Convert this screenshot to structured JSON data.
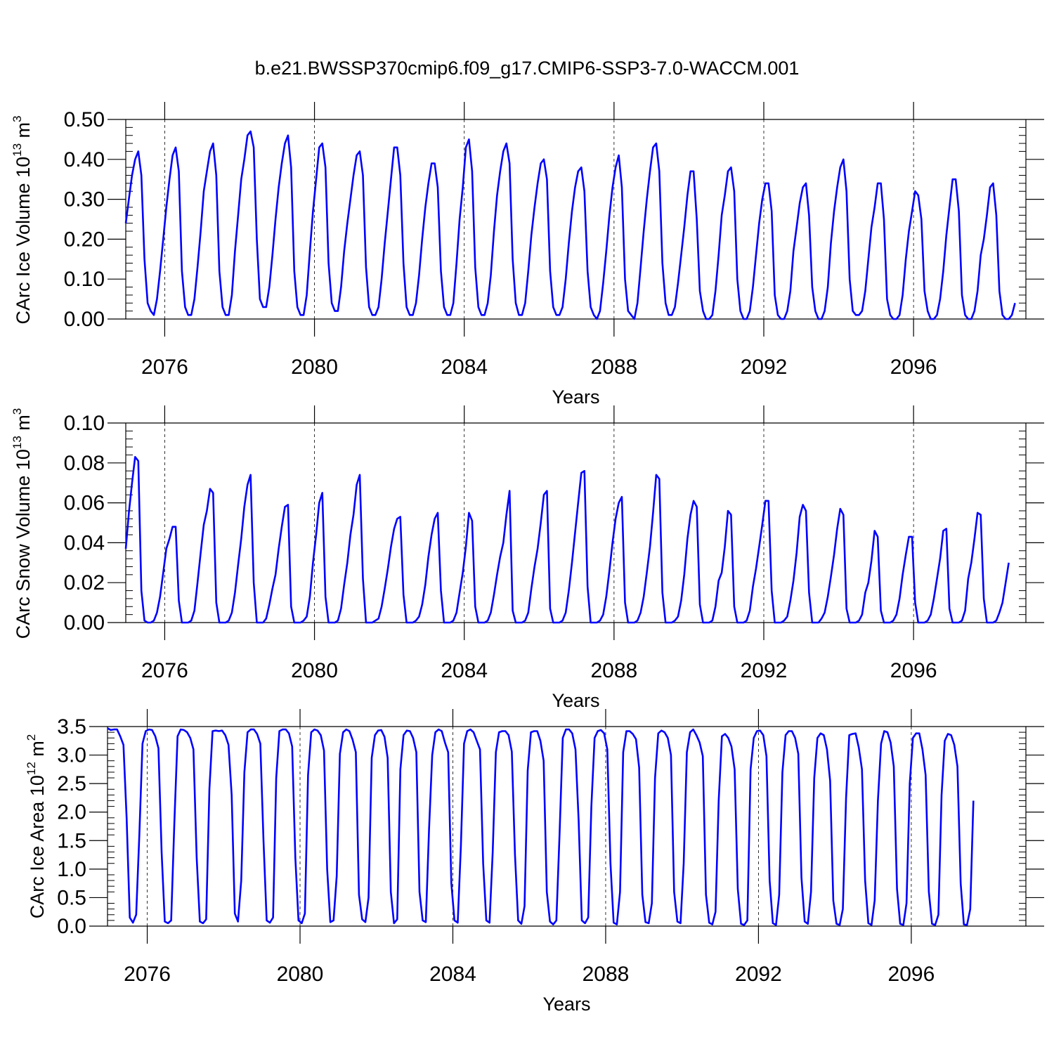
{
  "title": "b.e21.BWSSP370cmip6.f09_g17.CMIP6-SSP3-7.0-WACCM.001",
  "colors": {
    "series": "#0000ff",
    "axis": "#000000",
    "grid": "#000000"
  },
  "chart_data": [
    {
      "type": "line",
      "ylabel_main": "CArc Ice Volume 10",
      "ylabel_exp": "13",
      "ylabel_unit": " m",
      "ylabel_unit_exp": "3",
      "xlabel": "Years",
      "xlim": [
        2074.96,
        2099.0
      ],
      "ylim": [
        0.0,
        0.5
      ],
      "x_ticks": [
        "2076",
        "2080",
        "2084",
        "2088",
        "2092",
        "2096"
      ],
      "y_ticks": [
        "0.00",
        "0.10",
        "0.20",
        "0.30",
        "0.40",
        "0.50"
      ],
      "grid": "vertical dashed at major x ticks",
      "x_start": 2074.96,
      "x_step": 0.08333,
      "series": [
        {
          "values": [
            0.24,
            0.3,
            0.36,
            0.4,
            0.42,
            0.36,
            0.15,
            0.04,
            0.02,
            0.01,
            0.05,
            0.12,
            0.2,
            0.28,
            0.35,
            0.41,
            0.43,
            0.37,
            0.12,
            0.03,
            0.01,
            0.01,
            0.05,
            0.13,
            0.22,
            0.32,
            0.37,
            0.42,
            0.44,
            0.36,
            0.12,
            0.03,
            0.01,
            0.01,
            0.06,
            0.17,
            0.26,
            0.35,
            0.4,
            0.46,
            0.47,
            0.43,
            0.2,
            0.05,
            0.03,
            0.03,
            0.08,
            0.16,
            0.25,
            0.33,
            0.39,
            0.44,
            0.46,
            0.38,
            0.12,
            0.03,
            0.01,
            0.01,
            0.06,
            0.17,
            0.27,
            0.35,
            0.43,
            0.44,
            0.38,
            0.14,
            0.04,
            0.02,
            0.02,
            0.08,
            0.17,
            0.24,
            0.3,
            0.36,
            0.41,
            0.42,
            0.36,
            0.13,
            0.03,
            0.01,
            0.01,
            0.03,
            0.1,
            0.19,
            0.27,
            0.35,
            0.43,
            0.43,
            0.36,
            0.14,
            0.03,
            0.01,
            0.01,
            0.04,
            0.11,
            0.2,
            0.28,
            0.34,
            0.39,
            0.39,
            0.33,
            0.12,
            0.03,
            0.01,
            0.01,
            0.04,
            0.14,
            0.25,
            0.33,
            0.43,
            0.45,
            0.37,
            0.13,
            0.03,
            0.01,
            0.01,
            0.04,
            0.11,
            0.22,
            0.31,
            0.37,
            0.42,
            0.44,
            0.39,
            0.15,
            0.04,
            0.01,
            0.01,
            0.04,
            0.12,
            0.21,
            0.28,
            0.34,
            0.39,
            0.4,
            0.35,
            0.12,
            0.03,
            0.01,
            0.01,
            0.03,
            0.1,
            0.19,
            0.27,
            0.33,
            0.37,
            0.38,
            0.32,
            0.12,
            0.03,
            0.01,
            0.0,
            0.02,
            0.09,
            0.17,
            0.26,
            0.33,
            0.38,
            0.41,
            0.33,
            0.1,
            0.02,
            0.01,
            0.0,
            0.04,
            0.13,
            0.22,
            0.3,
            0.37,
            0.43,
            0.44,
            0.37,
            0.14,
            0.04,
            0.01,
            0.01,
            0.03,
            0.09,
            0.16,
            0.23,
            0.31,
            0.37,
            0.37,
            0.25,
            0.07,
            0.02,
            0.0,
            0.0,
            0.01,
            0.07,
            0.16,
            0.26,
            0.31,
            0.37,
            0.38,
            0.32,
            0.1,
            0.02,
            0.0,
            0.0,
            0.02,
            0.08,
            0.16,
            0.24,
            0.3,
            0.34,
            0.34,
            0.27,
            0.06,
            0.01,
            0.0,
            0.0,
            0.02,
            0.07,
            0.17,
            0.23,
            0.29,
            0.33,
            0.34,
            0.26,
            0.08,
            0.02,
            0.0,
            0.0,
            0.02,
            0.08,
            0.19,
            0.27,
            0.33,
            0.38,
            0.4,
            0.32,
            0.1,
            0.02,
            0.01,
            0.01,
            0.02,
            0.07,
            0.15,
            0.23,
            0.28,
            0.34,
            0.34,
            0.25,
            0.05,
            0.01,
            0.0,
            0.0,
            0.01,
            0.06,
            0.15,
            0.22,
            0.27,
            0.32,
            0.31,
            0.25,
            0.07,
            0.02,
            0.0,
            0.0,
            0.01,
            0.05,
            0.12,
            0.21,
            0.28,
            0.35,
            0.35,
            0.27,
            0.06,
            0.01,
            0.0,
            0.0,
            0.02,
            0.07,
            0.16,
            0.2,
            0.26,
            0.33,
            0.34,
            0.26,
            0.07,
            0.01,
            0.0,
            0.0,
            0.01,
            0.04
          ]
        }
      ]
    },
    {
      "type": "line",
      "ylabel_main": "CArc Snow Volume 10",
      "ylabel_exp": "13",
      "ylabel_unit": " m",
      "ylabel_unit_exp": "3",
      "xlabel": "Years",
      "xlim": [
        2074.96,
        2099.0
      ],
      "ylim": [
        0.0,
        0.1
      ],
      "x_ticks": [
        "2076",
        "2080",
        "2084",
        "2088",
        "2092",
        "2096"
      ],
      "y_ticks": [
        "0.00",
        "0.02",
        "0.04",
        "0.06",
        "0.08",
        "0.10"
      ],
      "grid": "vertical dashed at major x ticks",
      "x_start": 2074.96,
      "x_step": 0.08333,
      "series": [
        {
          "values": [
            0.037,
            0.055,
            0.07,
            0.083,
            0.081,
            0.016,
            0.001,
            0.0,
            0.0,
            0.001,
            0.005,
            0.013,
            0.025,
            0.037,
            0.042,
            0.048,
            0.048,
            0.011,
            0.0,
            0.0,
            0.0,
            0.001,
            0.006,
            0.02,
            0.035,
            0.049,
            0.056,
            0.067,
            0.065,
            0.01,
            0.0,
            0.0,
            0.0,
            0.001,
            0.005,
            0.015,
            0.029,
            0.042,
            0.058,
            0.069,
            0.074,
            0.02,
            0.0,
            0.0,
            0.0,
            0.002,
            0.009,
            0.017,
            0.024,
            0.037,
            0.048,
            0.058,
            0.059,
            0.008,
            0.0,
            0.0,
            0.0,
            0.001,
            0.003,
            0.013,
            0.03,
            0.044,
            0.06,
            0.065,
            0.013,
            0.0,
            0.0,
            0.0,
            0.001,
            0.007,
            0.019,
            0.03,
            0.044,
            0.054,
            0.069,
            0.074,
            0.022,
            0.0,
            0.0,
            0.0,
            0.001,
            0.002,
            0.008,
            0.017,
            0.027,
            0.038,
            0.047,
            0.052,
            0.053,
            0.014,
            0.0,
            0.0,
            0.0,
            0.001,
            0.003,
            0.009,
            0.019,
            0.033,
            0.044,
            0.052,
            0.055,
            0.016,
            0.0,
            0.0,
            0.0,
            0.001,
            0.005,
            0.015,
            0.025,
            0.038,
            0.055,
            0.051,
            0.008,
            0.0,
            0.0,
            0.0,
            0.001,
            0.005,
            0.014,
            0.024,
            0.033,
            0.04,
            0.054,
            0.066,
            0.006,
            0.0,
            0.0,
            0.0,
            0.001,
            0.005,
            0.017,
            0.028,
            0.037,
            0.05,
            0.064,
            0.066,
            0.007,
            0.0,
            0.0,
            0.0,
            0.001,
            0.005,
            0.016,
            0.03,
            0.045,
            0.06,
            0.075,
            0.076,
            0.018,
            0.0,
            0.0,
            0.0,
            0.001,
            0.004,
            0.013,
            0.026,
            0.04,
            0.052,
            0.06,
            0.063,
            0.01,
            0.0,
            0.0,
            0.0,
            0.001,
            0.005,
            0.013,
            0.025,
            0.038,
            0.055,
            0.074,
            0.072,
            0.015,
            0.0,
            0.0,
            0.0,
            0.001,
            0.003,
            0.011,
            0.024,
            0.042,
            0.054,
            0.061,
            0.058,
            0.009,
            0.0,
            0.0,
            0.0,
            0.001,
            0.008,
            0.021,
            0.025,
            0.038,
            0.056,
            0.054,
            0.008,
            0.0,
            0.0,
            0.0,
            0.001,
            0.006,
            0.018,
            0.027,
            0.038,
            0.049,
            0.061,
            0.061,
            0.016,
            0.0,
            0.0,
            0.0,
            0.001,
            0.003,
            0.011,
            0.021,
            0.035,
            0.053,
            0.059,
            0.056,
            0.015,
            0.0,
            0.0,
            0.0,
            0.002,
            0.005,
            0.013,
            0.023,
            0.034,
            0.047,
            0.057,
            0.054,
            0.007,
            0.0,
            0.0,
            0.0,
            0.001,
            0.004,
            0.015,
            0.02,
            0.031,
            0.046,
            0.043,
            0.006,
            0.0,
            0.0,
            0.0,
            0.001,
            0.004,
            0.012,
            0.024,
            0.034,
            0.043,
            0.043,
            0.01,
            0.0,
            0.0,
            0.0,
            0.001,
            0.004,
            0.012,
            0.022,
            0.032,
            0.046,
            0.047,
            0.007,
            0.0,
            0.0,
            0.0,
            0.001,
            0.006,
            0.022,
            0.03,
            0.042,
            0.055,
            0.054,
            0.012,
            0.0,
            0.0,
            0.0,
            0.001,
            0.005,
            0.01,
            0.02,
            0.03
          ]
        }
      ]
    },
    {
      "type": "line",
      "ylabel_main": "CArc Ice Area 10",
      "ylabel_exp": "12",
      "ylabel_unit": " m",
      "ylabel_unit_exp": "2",
      "xlabel": "Years",
      "xlim": [
        2074.96,
        2099.0
      ],
      "ylim": [
        0.0,
        3.5
      ],
      "x_ticks": [
        "2076",
        "2080",
        "2084",
        "2088",
        "2092",
        "2096"
      ],
      "y_ticks": [
        "0.0",
        "0.5",
        "1.0",
        "1.5",
        "2.0",
        "2.5",
        "3.0",
        "3.5"
      ],
      "grid": "vertical dashed at major x ticks",
      "x_start": 2074.96,
      "x_step": 0.08333,
      "series": [
        {
          "values": [
            3.47,
            3.44,
            3.45,
            3.45,
            3.33,
            3.18,
            1.9,
            0.15,
            0.06,
            0.2,
            1.6,
            3.2,
            3.42,
            3.45,
            3.44,
            3.33,
            3.12,
            1.3,
            0.08,
            0.05,
            0.1,
            1.8,
            3.33,
            3.45,
            3.44,
            3.4,
            3.3,
            3.1,
            1.2,
            0.08,
            0.05,
            0.12,
            2.4,
            3.42,
            3.43,
            3.42,
            3.43,
            3.35,
            3.18,
            2.3,
            0.22,
            0.08,
            0.8,
            2.7,
            3.4,
            3.45,
            3.45,
            3.37,
            3.2,
            1.5,
            0.1,
            0.06,
            0.15,
            2.6,
            3.42,
            3.45,
            3.45,
            3.38,
            3.15,
            1.2,
            0.1,
            0.05,
            0.22,
            2.65,
            3.4,
            3.45,
            3.43,
            3.35,
            3.08,
            1.0,
            0.07,
            0.1,
            0.88,
            3.02,
            3.4,
            3.45,
            3.42,
            3.27,
            3.05,
            0.55,
            0.12,
            0.07,
            0.5,
            2.95,
            3.35,
            3.43,
            3.44,
            3.32,
            2.95,
            0.6,
            0.05,
            0.12,
            2.75,
            3.35,
            3.43,
            3.42,
            3.3,
            3.05,
            0.6,
            0.1,
            0.07,
            1.7,
            3.0,
            3.4,
            3.45,
            3.42,
            3.22,
            3.05,
            0.75,
            0.1,
            0.06,
            1.4,
            3.2,
            3.42,
            3.45,
            3.4,
            3.25,
            3.1,
            1.1,
            0.1,
            0.06,
            1.3,
            3.05,
            3.4,
            3.42,
            3.42,
            3.35,
            3.06,
            1.25,
            0.1,
            0.04,
            0.35,
            2.73,
            3.4,
            3.42,
            3.42,
            3.25,
            2.9,
            0.6,
            0.08,
            0.03,
            0.1,
            1.6,
            3.3,
            3.45,
            3.45,
            3.38,
            3.1,
            1.85,
            0.1,
            0.05,
            0.15,
            2.1,
            3.3,
            3.42,
            3.44,
            3.38,
            3.1,
            1.1,
            0.06,
            0.03,
            0.6,
            3.05,
            3.42,
            3.42,
            3.37,
            3.28,
            2.78,
            0.55,
            0.07,
            0.05,
            0.4,
            2.6,
            3.38,
            3.43,
            3.4,
            3.3,
            3.0,
            0.6,
            0.08,
            0.05,
            1.1,
            3.05,
            3.4,
            3.45,
            3.35,
            3.22,
            2.98,
            0.55,
            0.06,
            0.03,
            0.25,
            2.2,
            3.33,
            3.37,
            3.3,
            3.15,
            2.75,
            0.65,
            0.04,
            0.02,
            0.1,
            2.75,
            3.3,
            3.42,
            3.43,
            3.35,
            2.98,
            0.8,
            0.05,
            0.02,
            0.55,
            2.7,
            3.35,
            3.42,
            3.42,
            3.3,
            3.02,
            0.85,
            0.08,
            0.04,
            0.6,
            2.6,
            3.3,
            3.38,
            3.35,
            3.1,
            2.55,
            0.45,
            0.04,
            0.02,
            0.3,
            2.25,
            3.35,
            3.37,
            3.38,
            3.13,
            2.75,
            0.8,
            0.05,
            0.02,
            0.45,
            2.2,
            3.2,
            3.42,
            3.4,
            3.22,
            2.8,
            0.65,
            0.04,
            0.02,
            0.4,
            2.5,
            3.3,
            3.38,
            3.38,
            3.1,
            2.65,
            0.6,
            0.04,
            0.02,
            0.2,
            2.3,
            3.25,
            3.37,
            3.35,
            3.18,
            2.8,
            0.75,
            0.03,
            0.02,
            0.3,
            2.2
          ]
        }
      ]
    }
  ]
}
